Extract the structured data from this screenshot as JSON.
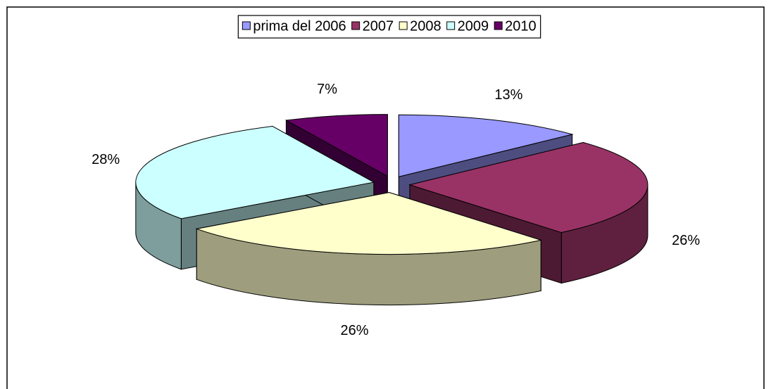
{
  "chart_data": {
    "type": "pie3d",
    "categories": [
      "prima del 2006",
      "2007",
      "2008",
      "2009",
      "2010"
    ],
    "values": [
      13,
      26,
      26,
      28,
      7
    ],
    "value_labels": [
      "13%",
      "26%",
      "26%",
      "28%",
      "7%"
    ],
    "colors": [
      "#9999ff",
      "#993366",
      "#ffffcc",
      "#ccffff",
      "#660066"
    ],
    "legend": "top"
  }
}
